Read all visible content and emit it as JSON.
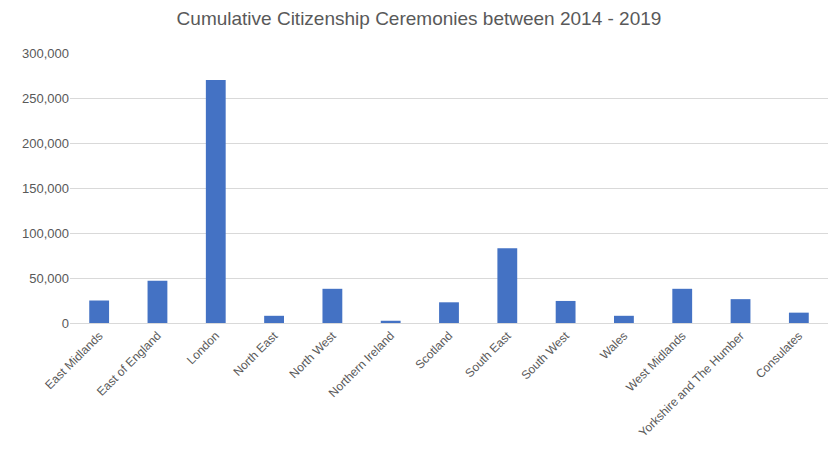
{
  "chart_data": {
    "type": "bar",
    "title": "Cumulative Citizenship Ceremonies between 2014 - 2019",
    "categories": [
      "East Midlands",
      "East of England",
      "London",
      "North East",
      "North West",
      "Northern Ireland",
      "Scotland",
      "South East",
      "South West",
      "Wales",
      "West Midlands",
      "Yorkshire and The Humber",
      "Consulates"
    ],
    "values": [
      25000,
      47000,
      270000,
      8000,
      38000,
      2500,
      23000,
      83000,
      24500,
      8000,
      38000,
      26500,
      11500
    ],
    "color": "#4472c4",
    "ylim": [
      0,
      300000
    ],
    "yticks": [
      0,
      {
        "value": 50000,
        "label": "50,000"
      },
      {
        "value": 100000,
        "label": "100,000"
      },
      {
        "value": 150000,
        "label": "150,000"
      },
      {
        "value": 200000,
        "label": "200,000"
      },
      {
        "value": 250000,
        "label": "250,000"
      },
      {
        "value": 300000,
        "label": "300,000"
      }
    ],
    "grid": true
  }
}
